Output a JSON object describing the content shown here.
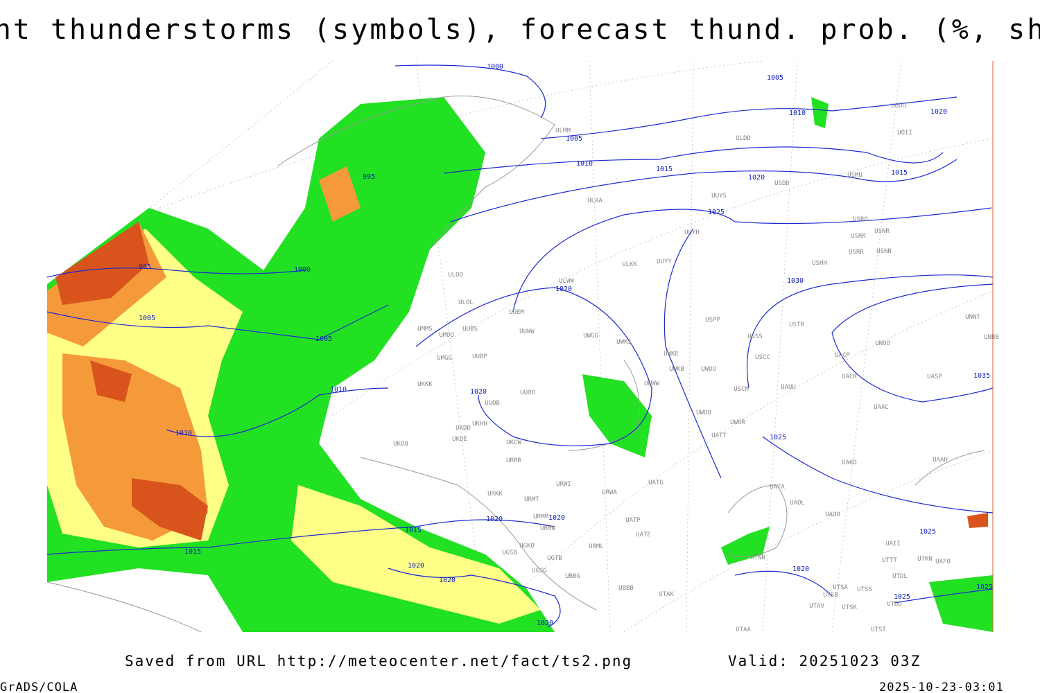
{
  "header": {
    "title": "Current thunderstorms (symbols), forecast thund. prob. (%, shaded)"
  },
  "isobar_labels": [
    "1000",
    "1005",
    "1010",
    "1020",
    "1005",
    "1010",
    "1015",
    "1015",
    "995",
    "1020",
    "1025",
    "995",
    "1000",
    "1030",
    "1020",
    "1005",
    "1005",
    "1035",
    "1010",
    "1020",
    "1010",
    "1025",
    "1020",
    "1020",
    "1015",
    "1025",
    "1015",
    "1020",
    "1020",
    "1020",
    "1025",
    "1025",
    "1020"
  ],
  "station_labels": [
    "ULMM",
    "ULDD",
    "USDD",
    "USMU",
    "UOOO",
    "UOII",
    "ULAA",
    "UUYS",
    "USRO",
    "USRK",
    "USNR",
    "USRR",
    "USNN",
    "UUYH",
    "USHH",
    "ULKK",
    "UUYY",
    "ULOD",
    "ULWW",
    "ULOL",
    "UUEM",
    "USPP",
    "USTR",
    "UNNT",
    "UNBB",
    "UMMS",
    "UUBS",
    "UMOO",
    "UUWW",
    "UWGG",
    "UWKS",
    "USSS",
    "UNOO",
    "UWKE",
    "UWKB",
    "UWUU",
    "USCC",
    "UMGG",
    "UUBP",
    "UACP",
    "UACK",
    "UASP",
    "UKKK",
    "UUOO",
    "UUOB",
    "USCM",
    "UAUU",
    "UKHH",
    "UKDD",
    "UWWW",
    "UWOO",
    "UWOR",
    "UAAC",
    "UATT",
    "UKOO",
    "UKDE",
    "UKCW",
    "URRR",
    "UAKD",
    "UAAH",
    "URWI",
    "UATG",
    "UATA",
    "URKK",
    "URMT",
    "URWA",
    "UAOL",
    "UAOO",
    "URMM",
    "UATP",
    "URMN",
    "UATE",
    "UAII",
    "UGKO",
    "URML",
    "UGSB",
    "UTNN",
    "UTTT",
    "UTKN",
    "UAFO",
    "UGTB",
    "UGSG",
    "UBBG",
    "UTDL",
    "UBBB",
    "UTSA",
    "UTSS",
    "UTAK",
    "UTSB",
    "UTDD",
    "UTAV",
    "UTSK",
    "UTAA",
    "UTST"
  ],
  "footer": {
    "source": "Saved from URL http://meteocenter.net/fact/ts2.png",
    "valid": "Valid: 20251023 03Z",
    "software": "GrADS/COLA",
    "timestamp": "2025-10-23-03:01"
  }
}
